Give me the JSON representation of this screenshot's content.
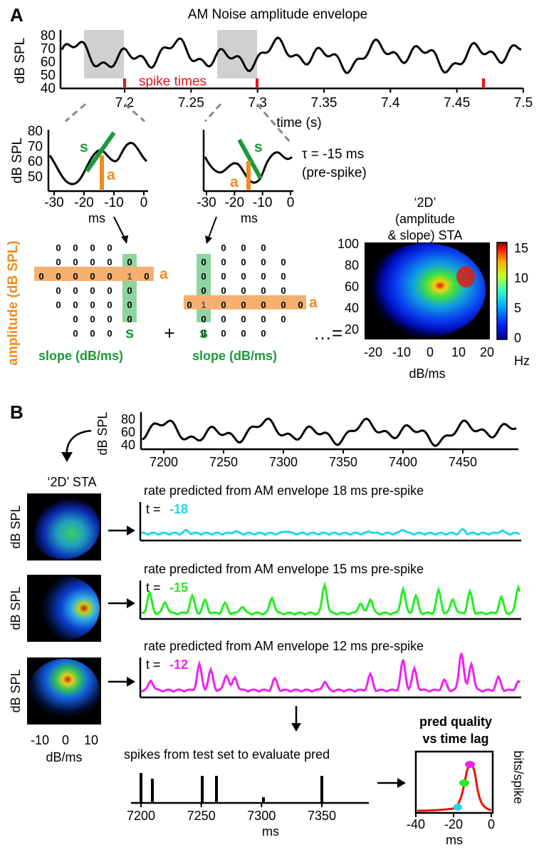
{
  "panel_a": {
    "letter": "A",
    "title": "AM Noise amplitude envelope",
    "ylabel": "dB SPL",
    "yticks": [
      "80",
      "70",
      "60",
      "50",
      "40"
    ],
    "xticks": [
      "7.2",
      "7.25",
      "7.3",
      "7.35",
      "7.4",
      "7.45",
      "7.5"
    ],
    "xlabel": "time (s)",
    "spike_label": "spike times",
    "zoom_ylabel": "dB SPL",
    "zoom_yticks": [
      "80",
      "70",
      "60",
      "50"
    ],
    "zoom_xticks": [
      "-30",
      "-20",
      "-10",
      "0"
    ],
    "zoom_xlabel": "ms",
    "slope_letter": "s",
    "amp_letter": "a",
    "tau_line1": "τ = -15 ms",
    "tau_line2": "(pre-spike)",
    "grid_ylabel": "amplitude  (dB SPL)",
    "grid_xlabel": "slope   (dB/ms)",
    "plus": "+",
    "ellipsis": "…=",
    "zero": "0",
    "one": "1",
    "sta_title1": "‘2D’",
    "sta_title2": "(amplitude",
    "sta_title3": "& slope) STA",
    "sta_yticks": [
      "100",
      "80",
      "60",
      "40",
      "20"
    ],
    "sta_xticks": [
      "-20",
      "-10",
      "0",
      "10",
      "20"
    ],
    "sta_xlabel": "dB/ms",
    "cbar_ticks": [
      "15",
      "10",
      "5",
      "0"
    ],
    "cbar_unit": "Hz"
  },
  "panel_b": {
    "letter": "B",
    "ylabel": "dB SPL",
    "yticks": [
      "80",
      "60",
      "40"
    ],
    "xticks": [
      "7200",
      "7250",
      "7300",
      "7350",
      "7400",
      "7450"
    ],
    "sta_title": "‘2D’ STA",
    "sta_ylabel": "dB SPL",
    "sta_xticks": [
      "-10",
      "0",
      "10"
    ],
    "sta_xlabel": "dB/ms",
    "rows": [
      {
        "title": "rate predicted from AM envelope 18 ms pre-spike",
        "t_label": "t = ",
        "t_value": "-18",
        "color": "#22d8e8"
      },
      {
        "title": "rate predicted from AM envelope 15 ms pre-spike",
        "t_label": "t = ",
        "t_value": "-15",
        "color": "#22ee22"
      },
      {
        "title": "rate predicted from AM envelope 12 ms pre-spike",
        "t_label": "t = ",
        "t_value": "-12",
        "color": "#ee22ee"
      }
    ],
    "spikes_title": "spikes from test set to evaluate pred",
    "spikes_xticks": [
      "7200",
      "7250",
      "7300",
      "7350"
    ],
    "spikes_xlabel": "ms",
    "pq_title1": "pred quality",
    "pq_title2": "vs time lag",
    "pq_ylabel": "bits/spike",
    "pq_xticks": [
      "-40",
      "-20",
      "0"
    ],
    "pq_xlabel": "ms"
  },
  "colors": {
    "slope": "#1a9a3a",
    "amplitude": "#f08a1e",
    "spike": "#e8141e",
    "cyan": "#22d8e8",
    "green": "#22ee22",
    "magenta": "#ee22ee",
    "red_curve": "#ee1111"
  }
}
